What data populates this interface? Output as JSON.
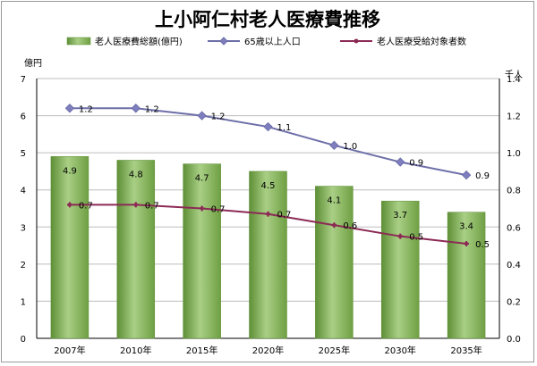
{
  "chart_data": {
    "type": "bar",
    "title": "上小阿仁村老人医療費推移",
    "categories": [
      "2007年",
      "2010年",
      "2015年",
      "2020年",
      "2025年",
      "2030年",
      "2035年"
    ],
    "series": [
      {
        "name": "老人医療費総額(億円)",
        "type": "bar",
        "axis": "left",
        "color": "#7fb04f",
        "values": [
          4.9,
          4.8,
          4.7,
          4.5,
          4.1,
          3.7,
          3.4
        ],
        "labels": [
          "4.9",
          "4.8",
          "4.7",
          "4.5",
          "4.1",
          "3.7",
          "3.4"
        ]
      },
      {
        "name": "65歳以上人口",
        "type": "line",
        "axis": "right",
        "color": "#6d6ea8",
        "values": [
          1.24,
          1.24,
          1.2,
          1.14,
          1.04,
          0.95,
          0.88
        ],
        "labels": [
          "1.2",
          "1.2",
          "1.2",
          "1.1",
          "1.0",
          "0.9",
          "0.9"
        ]
      },
      {
        "name": "老人医療受給対象者数",
        "type": "line",
        "axis": "right",
        "color": "#8c2a55",
        "values": [
          0.72,
          0.72,
          0.7,
          0.67,
          0.61,
          0.55,
          0.51
        ],
        "labels": [
          "0.7",
          "0.7",
          "0.7",
          "0.7",
          "0.6",
          "0.5",
          "0.5"
        ]
      }
    ],
    "y_left": {
      "unit": "億円",
      "ylim": [
        0,
        7
      ],
      "ticks": [
        "0",
        "1",
        "2",
        "3",
        "4",
        "5",
        "6",
        "7"
      ]
    },
    "y_right": {
      "unit": "千人",
      "ylim": [
        0,
        1.4
      ],
      "ticks": [
        "0.0",
        "0.2",
        "0.4",
        "0.6",
        "0.8",
        "1.0",
        "1.2",
        "1.4"
      ]
    },
    "grid": true,
    "legend": "top"
  }
}
